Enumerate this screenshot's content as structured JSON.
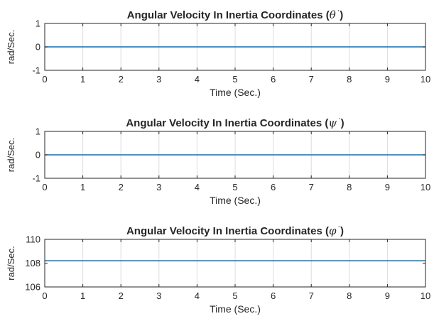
{
  "colors": {
    "line": "#0072BD",
    "axis": "#262626",
    "grid": "#dcdcdc",
    "background": "#ffffff"
  },
  "chart_data": [
    {
      "type": "line",
      "title": "Angular Velocity In Inertia Coordinates (",
      "title_symbol": "θ",
      "title_suffix": "˙)",
      "xlabel": "Time (Sec.)",
      "ylabel": "rad/Sec.",
      "xlim": [
        0,
        10
      ],
      "ylim": [
        -1,
        1
      ],
      "xticks": [
        0,
        1,
        2,
        3,
        4,
        5,
        6,
        7,
        8,
        9,
        10
      ],
      "yticks": [
        -1,
        0,
        1
      ],
      "grid": "x",
      "series": [
        {
          "x": [
            0,
            10
          ],
          "y": [
            0,
            0
          ]
        }
      ]
    },
    {
      "type": "line",
      "title": "Angular Velocity In Inertia Coordinates (",
      "title_symbol": "ψ",
      "title_suffix": "˙)",
      "xlabel": "Time (Sec.)",
      "ylabel": "rad/Sec.",
      "xlim": [
        0,
        10
      ],
      "ylim": [
        -1,
        1
      ],
      "xticks": [
        0,
        1,
        2,
        3,
        4,
        5,
        6,
        7,
        8,
        9,
        10
      ],
      "yticks": [
        -1,
        0,
        1
      ],
      "grid": "x",
      "series": [
        {
          "x": [
            0,
            10
          ],
          "y": [
            0,
            0
          ]
        }
      ]
    },
    {
      "type": "line",
      "title": "Angular Velocity In Inertia Coordinates (",
      "title_symbol": "φ",
      "title_suffix": "˙)",
      "xlabel": "Time (Sec.)",
      "ylabel": "rad/Sec.",
      "xlim": [
        0,
        10
      ],
      "ylim": [
        106,
        110
      ],
      "xticks": [
        0,
        1,
        2,
        3,
        4,
        5,
        6,
        7,
        8,
        9,
        10
      ],
      "yticks": [
        106,
        108,
        110
      ],
      "grid": "x",
      "series": [
        {
          "x": [
            0,
            10
          ],
          "y": [
            108.2,
            108.2
          ]
        }
      ]
    }
  ]
}
